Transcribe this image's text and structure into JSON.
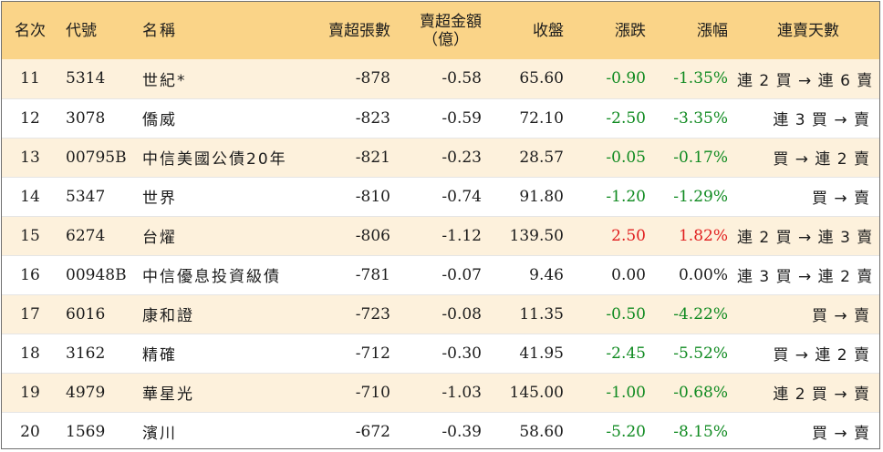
{
  "headers": {
    "rank": "名次",
    "code": "代號",
    "name": "名稱",
    "sell_volume": "賣超張數",
    "sell_amount_line1": "賣超金額",
    "sell_amount_line2": "（億）",
    "close": "收盤",
    "change": "漲跌",
    "change_pct": "漲幅",
    "streak": "連賣天數"
  },
  "rows": [
    {
      "rank": "11",
      "code": "5314",
      "name": "世紀*",
      "volume": "-878",
      "amount": "-0.58",
      "close": "65.60",
      "change": "-0.90",
      "pct": "-1.35%",
      "dir": "down",
      "streak": "連 2 買 → 連 6 賣"
    },
    {
      "rank": "12",
      "code": "3078",
      "name": "僑威",
      "volume": "-823",
      "amount": "-0.59",
      "close": "72.10",
      "change": "-2.50",
      "pct": "-3.35%",
      "dir": "down",
      "streak": "連 3 買 → 賣"
    },
    {
      "rank": "13",
      "code": "00795B",
      "name": "中信美國公債20年",
      "volume": "-821",
      "amount": "-0.23",
      "close": "28.57",
      "change": "-0.05",
      "pct": "-0.17%",
      "dir": "down",
      "streak": "買 → 連 2 賣"
    },
    {
      "rank": "14",
      "code": "5347",
      "name": "世界",
      "volume": "-810",
      "amount": "-0.74",
      "close": "91.80",
      "change": "-1.20",
      "pct": "-1.29%",
      "dir": "down",
      "streak": "買 → 賣"
    },
    {
      "rank": "15",
      "code": "6274",
      "name": "台燿",
      "volume": "-806",
      "amount": "-1.12",
      "close": "139.50",
      "change": "2.50",
      "pct": "1.82%",
      "dir": "up",
      "streak": "連 2 買 → 連 3 賣"
    },
    {
      "rank": "16",
      "code": "00948B",
      "name": "中信優息投資級債",
      "volume": "-781",
      "amount": "-0.07",
      "close": "9.46",
      "change": "0.00",
      "pct": "0.00%",
      "dir": "flat",
      "streak": "連 3 買 → 連 2 賣"
    },
    {
      "rank": "17",
      "code": "6016",
      "name": "康和證",
      "volume": "-723",
      "amount": "-0.08",
      "close": "11.35",
      "change": "-0.50",
      "pct": "-4.22%",
      "dir": "down",
      "streak": "買 → 賣"
    },
    {
      "rank": "18",
      "code": "3162",
      "name": "精確",
      "volume": "-712",
      "amount": "-0.30",
      "close": "41.95",
      "change": "-2.45",
      "pct": "-5.52%",
      "dir": "down",
      "streak": "買 → 連 2 賣"
    },
    {
      "rank": "19",
      "code": "4979",
      "name": "華星光",
      "volume": "-710",
      "amount": "-1.03",
      "close": "145.00",
      "change": "-1.00",
      "pct": "-0.68%",
      "dir": "down",
      "streak": "連 2 買 → 賣"
    },
    {
      "rank": "20",
      "code": "1569",
      "name": "濱川",
      "volume": "-672",
      "amount": "-0.39",
      "close": "58.60",
      "change": "-5.20",
      "pct": "-8.15%",
      "dir": "down",
      "streak": "買 → 賣"
    }
  ],
  "colors": {
    "header_bg": "#fad488",
    "stripe_bg": "#fdf1dc",
    "up": "#e01f1f",
    "down": "#0f8a20",
    "flat": "#1c1c1c"
  }
}
